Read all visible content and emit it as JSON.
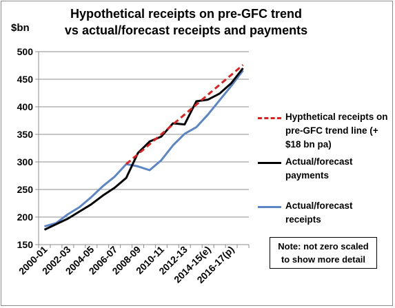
{
  "chart_data": {
    "type": "line",
    "title_line1": "Hypothetical receipts on pre-GFC trend",
    "title_line2": "vs actual/forecast receipts and payments",
    "ylabel": "$bn",
    "ylim": [
      150,
      500
    ],
    "yticks": [
      150,
      200,
      250,
      300,
      350,
      400,
      450,
      500
    ],
    "grid": "horizontal",
    "legend_position": "right",
    "x": [
      "2000-01",
      "2001-02",
      "2002-03",
      "2003-04",
      "2004-05",
      "2005-06",
      "2006-07",
      "2007-08",
      "2008-09",
      "2009-10",
      "2010-11",
      "2011-12",
      "2012-13",
      "2013-14",
      "2014-15(e)",
      "2015-16(f)",
      "2016-17(p)",
      "2017-18(p)"
    ],
    "xtick_labels": [
      "2000-01",
      "2002-03",
      "2004-05",
      "2006-07",
      "2008-09",
      "2010-11",
      "2012-13",
      "2014-15(e)",
      "2016-17(p)"
    ],
    "series": [
      {
        "name": "Hypthetical receipts on pre-GFC trend line (+ $18 bn pa)",
        "color": "#e02020",
        "style": "dashed",
        "values": [
          null,
          null,
          null,
          null,
          null,
          null,
          null,
          296,
          314,
          332,
          350,
          368,
          386,
          404,
          422,
          440,
          458,
          476
        ]
      },
      {
        "name": "Actual/forecast payments",
        "color": "#000000",
        "style": "solid",
        "values": [
          177,
          187,
          197,
          210,
          223,
          239,
          253,
          271,
          316,
          337,
          346,
          370,
          368,
          410,
          413,
          424,
          443,
          470
        ]
      },
      {
        "name": "Actual/forecast receipts",
        "color": "#5b86c5",
        "style": "solid",
        "values": [
          183,
          189,
          205,
          218,
          236,
          256,
          273,
          296,
          292,
          285,
          303,
          330,
          351,
          363,
          386,
          412,
          438,
          466
        ]
      }
    ],
    "annotation": "Note: not zero scaled\nto show more detail"
  }
}
